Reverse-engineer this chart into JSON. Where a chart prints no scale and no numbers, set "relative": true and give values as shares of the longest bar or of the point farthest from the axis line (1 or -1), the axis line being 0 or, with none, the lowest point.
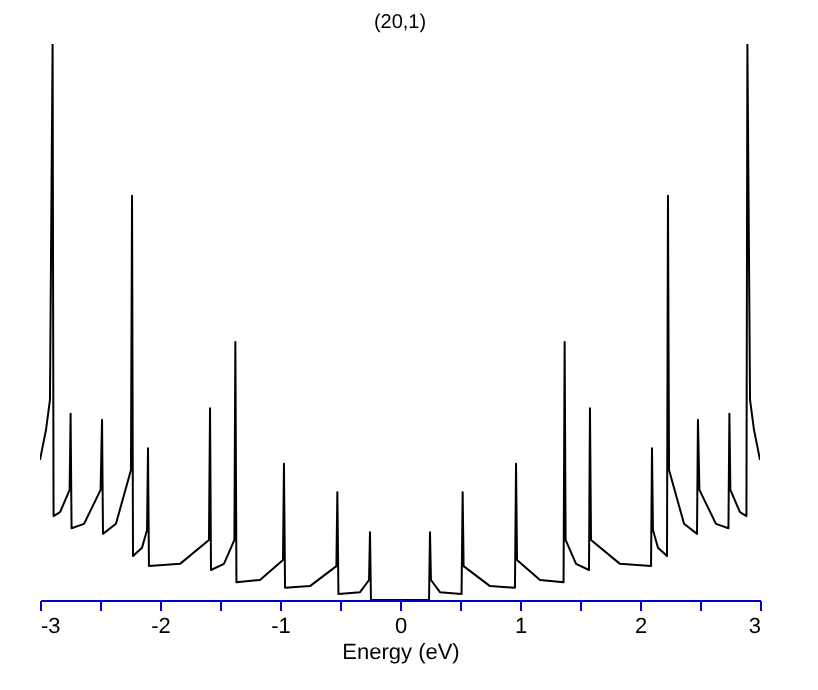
{
  "chart_data": {
    "type": "line",
    "title": "(20,1)",
    "xlabel": "Energy (eV)",
    "relative": true,
    "color": "#000000",
    "marker": "none",
    "line_style": "solid",
    "grid": false,
    "xlim": [
      -3,
      3
    ],
    "xticks": [
      -3,
      {
        "value": -2.5,
        "label": null
      },
      -2,
      {
        "value": -1.5,
        "label": null
      },
      -1,
      {
        "value": -0.5,
        "label": null
      },
      0,
      {
        "value": 0.5,
        "label": null
      },
      1,
      {
        "value": 1.5,
        "label": null
      },
      2,
      {
        "value": 2.5,
        "label": null
      },
      3
    ],
    "x": [
      -3.0,
      -2.95,
      -2.917,
      -2.895,
      -2.887,
      -2.833,
      -2.753,
      -2.745,
      -2.737,
      -2.633,
      -2.495,
      -2.483,
      -2.475,
      -2.367,
      -2.242,
      -2.233,
      -2.225,
      -2.15,
      -2.108,
      -2.1,
      -2.092,
      -1.833,
      -1.592,
      -1.583,
      -1.575,
      -1.467,
      -1.38,
      -1.372,
      -1.363,
      -1.167,
      -0.975,
      -0.967,
      -0.958,
      -0.75,
      -0.53,
      -0.522,
      -0.513,
      -0.333,
      -0.258,
      -0.25,
      -0.242,
      0,
      0.242,
      0.25,
      0.258,
      0.333,
      0.513,
      0.522,
      0.53,
      0.75,
      0.958,
      0.967,
      0.975,
      1.167,
      1.363,
      1.372,
      1.38,
      1.467,
      1.575,
      1.583,
      1.592,
      1.833,
      2.092,
      2.1,
      2.108,
      2.15,
      2.225,
      2.233,
      2.242,
      2.367,
      2.475,
      2.483,
      2.495,
      2.633,
      2.737,
      2.745,
      2.753,
      2.833,
      2.887,
      2.895,
      2.917,
      2.95,
      3.0
    ],
    "values": [
      0.252,
      0.306,
      0.36,
      1.0,
      0.151,
      0.158,
      0.198,
      0.335,
      0.129,
      0.137,
      0.198,
      0.324,
      0.119,
      0.137,
      0.234,
      0.727,
      0.079,
      0.094,
      0.126,
      0.273,
      0.061,
      0.065,
      0.108,
      0.345,
      0.054,
      0.065,
      0.108,
      0.464,
      0.032,
      0.036,
      0.072,
      0.245,
      0.022,
      0.025,
      0.061,
      0.194,
      0.011,
      0.014,
      0.036,
      0.122,
      0,
      0,
      0,
      0.122,
      0.036,
      0.014,
      0.011,
      0.194,
      0.061,
      0.025,
      0.022,
      0.245,
      0.072,
      0.036,
      0.032,
      0.464,
      0.108,
      0.065,
      0.054,
      0.345,
      0.108,
      0.065,
      0.061,
      0.273,
      0.126,
      0.094,
      0.079,
      0.727,
      0.234,
      0.137,
      0.119,
      0.324,
      0.198,
      0.137,
      0.129,
      0.335,
      0.198,
      0.158,
      0.151,
      1.0,
      0.36,
      0.306,
      0.252
    ]
  }
}
